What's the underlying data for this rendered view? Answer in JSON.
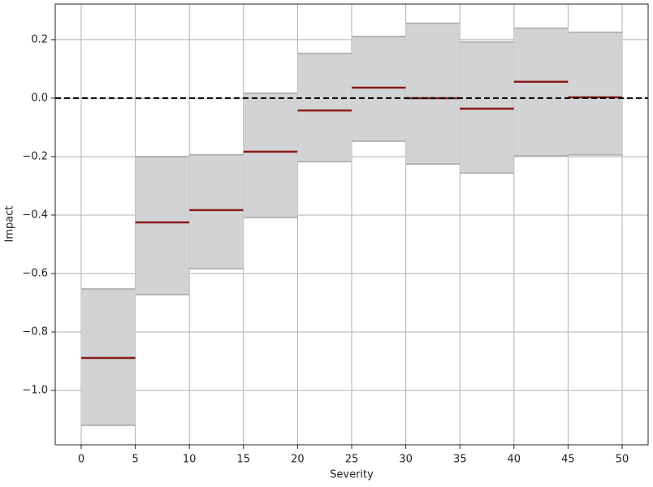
{
  "chart_data": {
    "type": "interval",
    "xlabel": "Severity",
    "ylabel": "Impact",
    "bins": [
      0,
      5,
      10,
      15,
      20,
      25,
      30,
      35,
      40,
      45,
      50
    ],
    "lower": [
      -1.119,
      -0.672,
      -0.583,
      -0.408,
      -0.217,
      -0.147,
      -0.225,
      -0.256,
      -0.197,
      -0.194
    ],
    "upper": [
      -0.653,
      -0.2,
      -0.194,
      0.017,
      0.153,
      0.211,
      0.256,
      0.192,
      0.239,
      0.225
    ],
    "mean": [
      -0.889,
      -0.425,
      -0.383,
      -0.183,
      -0.042,
      0.036,
      0.0,
      -0.036,
      0.056,
      0.003
    ],
    "fill_color": "#d0d1d3",
    "edge_color": "#b3b3b3",
    "mean_color": "#8b1a1a",
    "reference_line": 0,
    "xlim": [
      -2.4,
      52.4
    ],
    "ylim": [
      -1.186,
      0.322
    ],
    "xticks": [
      0,
      5,
      10,
      15,
      20,
      25,
      30,
      35,
      40,
      45,
      50
    ],
    "yticks": [
      {
        "value": -1.0,
        "label": "−1.0"
      },
      {
        "value": -0.8,
        "label": "−0.8"
      },
      {
        "value": -0.6,
        "label": "−0.6"
      },
      {
        "value": -0.4,
        "label": "−0.4"
      },
      {
        "value": -0.2,
        "label": "−0.2"
      },
      {
        "value": 0.0,
        "label": "0.0"
      },
      {
        "value": 0.2,
        "label": "0.2"
      }
    ],
    "grid": true
  }
}
